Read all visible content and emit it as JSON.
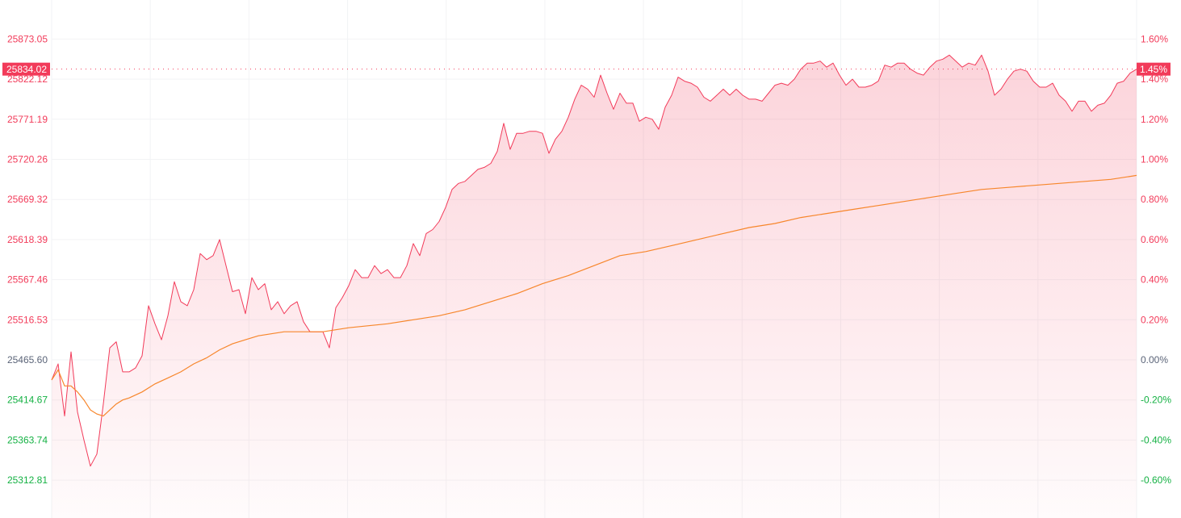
{
  "chart_data": {
    "type": "line",
    "base_price": 25465.6,
    "last_price_label": "25834.02",
    "last_pct_label": "1.45%",
    "left_ticks": [
      "25873.05",
      "25822.12",
      "25771.19",
      "25720.26",
      "25669.32",
      "25618.39",
      "25567.46",
      "25516.53",
      "25465.60",
      "25414.67",
      "25363.74",
      "25312.81"
    ],
    "right_ticks": [
      "1.60%",
      "1.40%",
      "1.20%",
      "1.00%",
      "0.80%",
      "0.60%",
      "0.40%",
      "0.20%",
      "0.00%",
      "-0.20%",
      "-0.40%",
      "-0.60%"
    ],
    "tick_values_pct": [
      1.6,
      1.4,
      1.2,
      1.0,
      0.8,
      0.6,
      0.4,
      0.2,
      0.0,
      -0.2,
      -0.4,
      -0.6
    ],
    "ylim_pct": [
      -0.79,
      1.77
    ],
    "x_range": [
      0,
      168
    ],
    "grid": true,
    "colors": {
      "up": "#f23b5a",
      "down": "#14b143",
      "neutral": "#5b6478",
      "avg": "#f7862b",
      "fill": "#f23b5a",
      "badge": "#f23b5a"
    },
    "series": [
      {
        "type": "price_pct",
        "values": [
          -0.1,
          -0.02,
          -0.28,
          0.04,
          -0.26,
          -0.4,
          -0.53,
          -0.47,
          -0.22,
          0.06,
          0.09,
          -0.06,
          -0.06,
          -0.04,
          0.02,
          0.27,
          0.18,
          0.1,
          0.22,
          0.39,
          0.29,
          0.27,
          0.35,
          0.53,
          0.5,
          0.52,
          0.6,
          0.47,
          0.34,
          0.35,
          0.23,
          0.41,
          0.35,
          0.38,
          0.25,
          0.29,
          0.23,
          0.27,
          0.29,
          0.19,
          0.14,
          0.14,
          0.14,
          0.06,
          0.26,
          0.31,
          0.37,
          0.45,
          0.41,
          0.41,
          0.47,
          0.43,
          0.45,
          0.41,
          0.41,
          0.47,
          0.58,
          0.52,
          0.63,
          0.65,
          0.69,
          0.76,
          0.85,
          0.88,
          0.89,
          0.92,
          0.95,
          0.96,
          0.98,
          1.04,
          1.18,
          1.05,
          1.13,
          1.13,
          1.14,
          1.14,
          1.13,
          1.03,
          1.1,
          1.14,
          1.21,
          1.3,
          1.37,
          1.35,
          1.31,
          1.42,
          1.33,
          1.25,
          1.33,
          1.28,
          1.28,
          1.19,
          1.21,
          1.2,
          1.15,
          1.26,
          1.32,
          1.41,
          1.39,
          1.38,
          1.36,
          1.31,
          1.29,
          1.32,
          1.35,
          1.32,
          1.35,
          1.32,
          1.3,
          1.3,
          1.29,
          1.33,
          1.37,
          1.38,
          1.37,
          1.4,
          1.45,
          1.48,
          1.48,
          1.49,
          1.46,
          1.48,
          1.42,
          1.37,
          1.4,
          1.36,
          1.36,
          1.37,
          1.39,
          1.47,
          1.46,
          1.48,
          1.48,
          1.45,
          1.43,
          1.42,
          1.46,
          1.49,
          1.5,
          1.52,
          1.49,
          1.46,
          1.48,
          1.47,
          1.52,
          1.44,
          1.32,
          1.35,
          1.4,
          1.44,
          1.45,
          1.44,
          1.39,
          1.36,
          1.36,
          1.38,
          1.32,
          1.29,
          1.24,
          1.29,
          1.29,
          1.24,
          1.27,
          1.28,
          1.32,
          1.38,
          1.39,
          1.43,
          1.45
        ]
      },
      {
        "type": "average_pct",
        "points": [
          [
            0,
            -0.1
          ],
          [
            1,
            -0.05
          ],
          [
            2,
            -0.13
          ],
          [
            3,
            -0.13
          ],
          [
            4,
            -0.16
          ],
          [
            5,
            -0.2
          ],
          [
            6,
            -0.25
          ],
          [
            7,
            -0.27
          ],
          [
            8,
            -0.28
          ],
          [
            9,
            -0.25
          ],
          [
            10,
            -0.22
          ],
          [
            11,
            -0.2
          ],
          [
            12,
            -0.19
          ],
          [
            14,
            -0.16
          ],
          [
            16,
            -0.12
          ],
          [
            18,
            -0.09
          ],
          [
            20,
            -0.06
          ],
          [
            22,
            -0.02
          ],
          [
            24,
            0.01
          ],
          [
            26,
            0.05
          ],
          [
            28,
            0.08
          ],
          [
            30,
            0.1
          ],
          [
            32,
            0.12
          ],
          [
            34,
            0.13
          ],
          [
            36,
            0.14
          ],
          [
            38,
            0.14
          ],
          [
            40,
            0.14
          ],
          [
            42,
            0.14
          ],
          [
            44,
            0.15
          ],
          [
            46,
            0.16
          ],
          [
            52,
            0.18
          ],
          [
            56,
            0.2
          ],
          [
            60,
            0.22
          ],
          [
            64,
            0.25
          ],
          [
            68,
            0.29
          ],
          [
            72,
            0.33
          ],
          [
            76,
            0.38
          ],
          [
            80,
            0.42
          ],
          [
            84,
            0.47
          ],
          [
            88,
            0.52
          ],
          [
            92,
            0.54
          ],
          [
            96,
            0.57
          ],
          [
            100,
            0.6
          ],
          [
            104,
            0.63
          ],
          [
            108,
            0.66
          ],
          [
            112,
            0.68
          ],
          [
            116,
            0.71
          ],
          [
            120,
            0.73
          ],
          [
            124,
            0.75
          ],
          [
            128,
            0.77
          ],
          [
            132,
            0.79
          ],
          [
            136,
            0.81
          ],
          [
            140,
            0.83
          ],
          [
            144,
            0.85
          ],
          [
            148,
            0.86
          ],
          [
            152,
            0.87
          ],
          [
            156,
            0.88
          ],
          [
            160,
            0.89
          ],
          [
            164,
            0.9
          ],
          [
            168,
            0.92
          ]
        ]
      }
    ]
  }
}
